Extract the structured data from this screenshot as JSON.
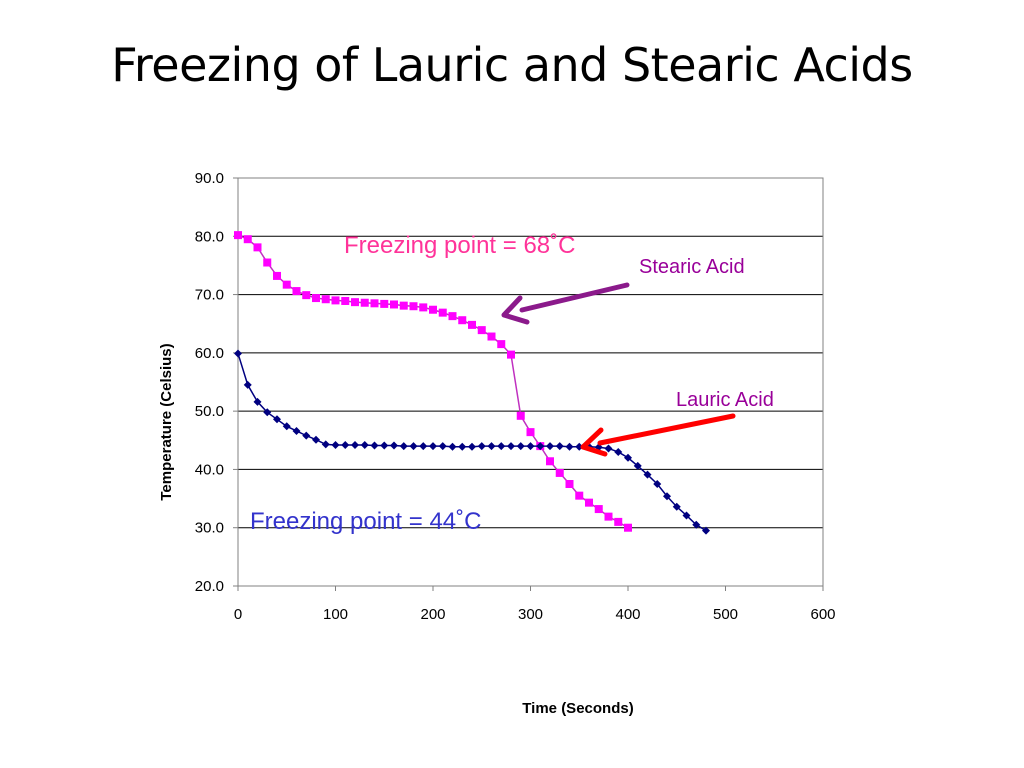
{
  "slide": {
    "title": "Freezing of Lauric and Stearic Acids"
  },
  "colors": {
    "stearic_line": "#C030C0",
    "stearic_marker": "#FF00FF",
    "lauric": "#000080",
    "stearic_arrow": "#8B1A8B",
    "lauric_arrow": "#FF0000",
    "stearic_fp_text": "#FF3399",
    "series_label": "#990099",
    "lauric_fp_text": "#3333CC",
    "grid": "#000000"
  },
  "chart_data": {
    "type": "scatter",
    "xlabel": "Time (Seconds)",
    "ylabel": "Temperature  (Celsius)",
    "xlim": [
      0,
      600
    ],
    "ylim": [
      20,
      90
    ],
    "x_ticks": [
      "0",
      "100",
      "200",
      "300",
      "400",
      "500",
      "600"
    ],
    "y_ticks": [
      "20.0",
      "30.0",
      "40.0",
      "50.0",
      "60.0",
      "70.0",
      "80.0",
      "90.0"
    ],
    "grid": "horizontal",
    "series": [
      {
        "name": "Stearic Acid",
        "marker": "square",
        "x": [
          0,
          10,
          20,
          30,
          40,
          50,
          60,
          70,
          80,
          90,
          100,
          110,
          120,
          130,
          140,
          150,
          160,
          170,
          180,
          190,
          200,
          210,
          220,
          230,
          240,
          250,
          260,
          270,
          280,
          290,
          300,
          310,
          320,
          330,
          340,
          350,
          360,
          370,
          380,
          390,
          400
        ],
        "y": [
          80.2,
          79.5,
          78.1,
          75.5,
          73.2,
          71.7,
          70.6,
          69.9,
          69.4,
          69.2,
          69.0,
          68.9,
          68.7,
          68.6,
          68.5,
          68.4,
          68.3,
          68.1,
          68.0,
          67.8,
          67.4,
          66.9,
          66.3,
          65.6,
          64.8,
          63.9,
          62.8,
          61.5,
          59.7,
          49.2,
          46.4,
          44.0,
          41.4,
          39.4,
          37.5,
          35.5,
          34.3,
          33.2,
          31.9,
          31.0,
          30.0
        ]
      },
      {
        "name": "Lauric Acid",
        "marker": "diamond",
        "x": [
          0,
          10,
          20,
          30,
          40,
          50,
          60,
          70,
          80,
          90,
          100,
          110,
          120,
          130,
          140,
          150,
          160,
          170,
          180,
          190,
          200,
          210,
          220,
          230,
          240,
          250,
          260,
          270,
          280,
          290,
          300,
          310,
          320,
          330,
          340,
          350,
          360,
          370,
          380,
          390,
          400,
          410,
          420,
          430,
          440,
          450,
          460,
          470,
          480
        ],
        "y": [
          59.9,
          54.5,
          51.6,
          49.8,
          48.6,
          47.4,
          46.6,
          45.8,
          45.1,
          44.3,
          44.2,
          44.2,
          44.2,
          44.2,
          44.1,
          44.1,
          44.1,
          44.0,
          44.0,
          44.0,
          44.0,
          44.0,
          43.9,
          43.9,
          43.9,
          44.0,
          44.0,
          44.0,
          44.0,
          44.0,
          44.0,
          44.0,
          44.0,
          44.0,
          43.9,
          43.9,
          43.9,
          43.8,
          43.6,
          43.0,
          42.0,
          40.6,
          39.1,
          37.5,
          35.4,
          33.6,
          32.1,
          30.5,
          29.5
        ]
      }
    ]
  },
  "annotations": {
    "stearic_freezing": "Freezing point = 68˚C",
    "stearic_label": "Stearic Acid",
    "lauric_label": "Lauric Acid",
    "lauric_freezing": "Freezing point = 44˚C"
  }
}
